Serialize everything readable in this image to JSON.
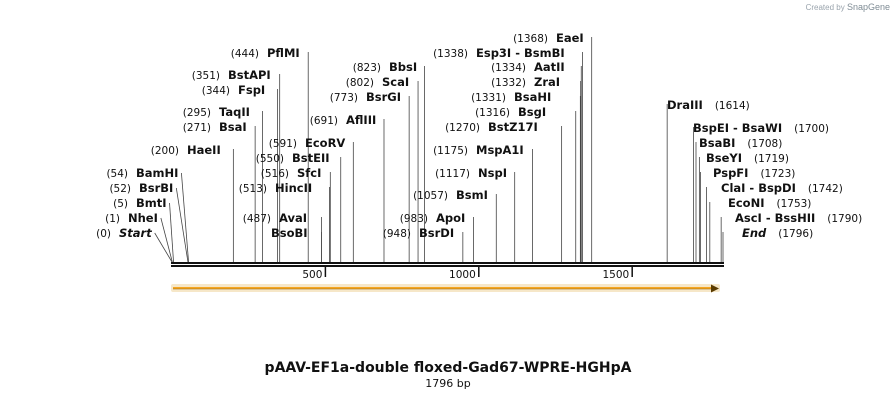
{
  "credit": {
    "prefix": "Created by",
    "brand": "SnapGene"
  },
  "map": {
    "title": "pAAV-EF1a-double floxed-Gad67-WPRE-HGHpA",
    "length_label": "1796 bp",
    "length": 1796,
    "ticks": [
      {
        "pos": 500,
        "label": "500"
      },
      {
        "pos": 1000,
        "label": "1000"
      },
      {
        "pos": 1500,
        "label": "1500"
      }
    ],
    "features": [
      {
        "name": "Start",
        "pos": 0,
        "pos_label": "(0)",
        "italic": true
      },
      {
        "name": "NheI",
        "pos": 1,
        "pos_label": "(1)"
      },
      {
        "name": "BmtI",
        "pos": 5,
        "pos_label": "(5)"
      },
      {
        "name": "BsrBI",
        "pos": 52,
        "pos_label": "(52)"
      },
      {
        "name": "BamHI",
        "pos": 54,
        "pos_label": "(54)"
      },
      {
        "name": "HaeII",
        "pos": 200,
        "pos_label": "(200)"
      },
      {
        "name": "BsaI",
        "pos": 271,
        "pos_label": "(271)"
      },
      {
        "name": "TaqII",
        "pos": 295,
        "pos_label": "(295)"
      },
      {
        "name": "FspI",
        "pos": 344,
        "pos_label": "(344)"
      },
      {
        "name": "BstAPI",
        "pos": 351,
        "pos_label": "(351)"
      },
      {
        "name": "PflMI",
        "pos": 444,
        "pos_label": "(444)"
      },
      {
        "name": "BsoBI",
        "pos": 487,
        "pos_label": ""
      },
      {
        "name": "AvaI",
        "pos": 487,
        "pos_label": "(487)"
      },
      {
        "name": "HincII",
        "pos": 513,
        "pos_label": "(513)"
      },
      {
        "name": "SfcI",
        "pos": 516,
        "pos_label": "(516)"
      },
      {
        "name": "BstEII",
        "pos": 550,
        "pos_label": "(550)"
      },
      {
        "name": "EcoRV",
        "pos": 591,
        "pos_label": "(591)"
      },
      {
        "name": "AflIII",
        "pos": 691,
        "pos_label": "(691)"
      },
      {
        "name": "BsrGI",
        "pos": 773,
        "pos_label": "(773)"
      },
      {
        "name": "ScaI",
        "pos": 802,
        "pos_label": "(802)"
      },
      {
        "name": "BbsI",
        "pos": 823,
        "pos_label": "(823)"
      },
      {
        "name": "BsrDI",
        "pos": 948,
        "pos_label": "(948)"
      },
      {
        "name": "ApoI",
        "pos": 983,
        "pos_label": "(983)"
      },
      {
        "name": "BsmI",
        "pos": 1057,
        "pos_label": "(1057)"
      },
      {
        "name": "NspI",
        "pos": 1117,
        "pos_label": "(1117)"
      },
      {
        "name": "MspA1I",
        "pos": 1175,
        "pos_label": "(1175)"
      },
      {
        "name": "BstZ17I",
        "pos": 1270,
        "pos_label": "(1270)"
      },
      {
        "name": "BsgI",
        "pos": 1316,
        "pos_label": "(1316)"
      },
      {
        "name": "BsaHI",
        "pos": 1331,
        "pos_label": "(1331)"
      },
      {
        "name": "ZraI",
        "pos": 1332,
        "pos_label": "(1332)"
      },
      {
        "name": "AatII",
        "pos": 1334,
        "pos_label": "(1334)"
      },
      {
        "name": "Esp3I - BsmBI",
        "pos": 1338,
        "pos_label": "(1338)"
      },
      {
        "name": "EaeI",
        "pos": 1368,
        "pos_label": "(1368)"
      },
      {
        "name": "DraIII",
        "pos": 1614,
        "pos_label": "(1614)"
      },
      {
        "name": "BspEI - BsaWI",
        "pos": 1700,
        "pos_label": "(1700)"
      },
      {
        "name": "BsaBI",
        "pos": 1708,
        "pos_label": "(1708)"
      },
      {
        "name": "BseYI",
        "pos": 1719,
        "pos_label": "(1719)"
      },
      {
        "name": "PspFI",
        "pos": 1723,
        "pos_label": "(1723)"
      },
      {
        "name": "ClaI - BspDI",
        "pos": 1742,
        "pos_label": "(1742)"
      },
      {
        "name": "EcoNI",
        "pos": 1753,
        "pos_label": "(1753)"
      },
      {
        "name": "AscI - BssHII",
        "pos": 1790,
        "pos_label": "(1790)"
      },
      {
        "name": "End",
        "pos": 1796,
        "pos_label": "(1796)",
        "italic": true
      }
    ],
    "colors": {
      "backbone": "#111111",
      "arrow_fill": "#f5a623",
      "arrow_glow": "#f6e7c8",
      "line": "#444444"
    }
  }
}
